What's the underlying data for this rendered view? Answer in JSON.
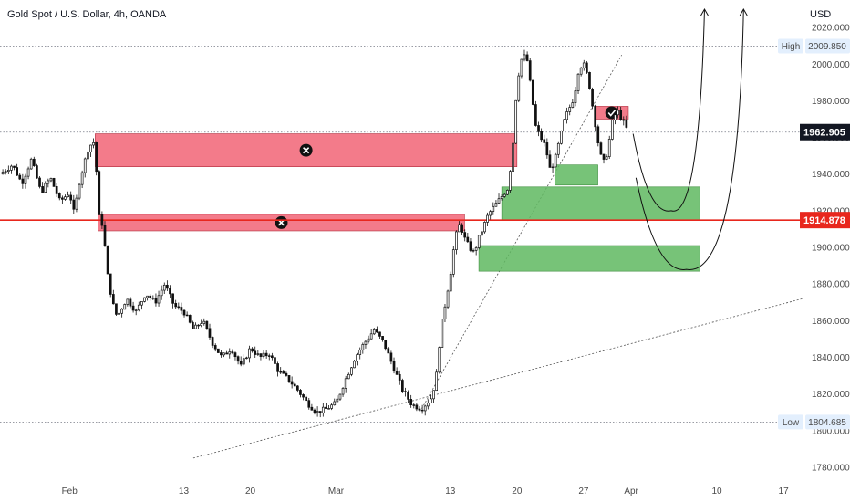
{
  "header": {
    "title": "Gold Spot / U.S. Dollar, 4h, OANDA",
    "currency": "USD"
  },
  "colors": {
    "supply_zone": "#f26d7d",
    "demand_zone": "#5fb860",
    "horizontal_level": "#e8271d",
    "candle": "#111111",
    "price_tag_dark": "#131722",
    "price_tag_red": "#e8271d"
  },
  "chart_data": {
    "type": "candlestick",
    "title": "Gold Spot / U.S. Dollar, 4h, OANDA",
    "y_unit": "USD",
    "ylim": [
      1775,
      2035
    ],
    "y_ticks": [
      {
        "value": 2020,
        "label": "2020.000"
      },
      {
        "value": 2000,
        "label": "2000.000"
      },
      {
        "value": 1980,
        "label": "1980.000"
      },
      {
        "value": 1960,
        "label": "1960.000"
      },
      {
        "value": 1940,
        "label": "1940.000"
      },
      {
        "value": 1920,
        "label": "1920.000"
      },
      {
        "value": 1900,
        "label": "1900.000"
      },
      {
        "value": 1880,
        "label": "1880.000"
      },
      {
        "value": 1860,
        "label": "1860.000"
      },
      {
        "value": 1840,
        "label": "1840.000"
      },
      {
        "value": 1820,
        "label": "1820.000"
      },
      {
        "value": 1800,
        "label": "1800.000"
      },
      {
        "value": 1780,
        "label": "1780.000"
      }
    ],
    "x_ticks": [
      {
        "day": 0,
        "label": "Feb"
      },
      {
        "day": 12,
        "label": "13"
      },
      {
        "day": 19,
        "label": "20"
      },
      {
        "day": 28,
        "label": "Mar"
      },
      {
        "day": 40,
        "label": "13"
      },
      {
        "day": 47,
        "label": "20"
      },
      {
        "day": 54,
        "label": "27"
      },
      {
        "day": 59,
        "label": "Apr"
      },
      {
        "day": 68,
        "label": "10"
      },
      {
        "day": 75,
        "label": "17"
      }
    ],
    "xlim": [
      -7.3,
      77
    ],
    "price_path": [
      [
        -7.3,
        1940
      ],
      [
        -6,
        1945
      ],
      [
        -5,
        1935
      ],
      [
        -4,
        1948
      ],
      [
        -3,
        1930
      ],
      [
        -2,
        1938
      ],
      [
        -1,
        1925
      ],
      [
        0,
        1930
      ],
      [
        0.5,
        1918
      ],
      [
        1,
        1935
      ],
      [
        2,
        1955
      ],
      [
        2.7,
        1958
      ],
      [
        3,
        1918
      ],
      [
        3.5,
        1912
      ],
      [
        4,
        1885
      ],
      [
        4.5,
        1870
      ],
      [
        5,
        1862
      ],
      [
        6,
        1872
      ],
      [
        7,
        1865
      ],
      [
        8,
        1875
      ],
      [
        9,
        1870
      ],
      [
        10,
        1880
      ],
      [
        11,
        1868
      ],
      [
        12,
        1865
      ],
      [
        13,
        1855
      ],
      [
        14,
        1860
      ],
      [
        15,
        1848
      ],
      [
        16,
        1840
      ],
      [
        17,
        1845
      ],
      [
        18,
        1835
      ],
      [
        19,
        1845
      ],
      [
        20,
        1840
      ],
      [
        21,
        1842
      ],
      [
        22,
        1832
      ],
      [
        23,
        1828
      ],
      [
        24,
        1822
      ],
      [
        25,
        1815
      ],
      [
        26,
        1810
      ],
      [
        27,
        1812
      ],
      [
        28,
        1815
      ],
      [
        29,
        1828
      ],
      [
        30,
        1840
      ],
      [
        31,
        1848
      ],
      [
        32,
        1855
      ],
      [
        33,
        1848
      ],
      [
        34,
        1835
      ],
      [
        35,
        1822
      ],
      [
        36,
        1814
      ],
      [
        37,
        1812
      ],
      [
        38,
        1818
      ],
      [
        38.5,
        1828
      ],
      [
        39,
        1855
      ],
      [
        39.5,
        1870
      ],
      [
        40,
        1885
      ],
      [
        40.5,
        1905
      ],
      [
        41,
        1913
      ],
      [
        41.5,
        1905
      ],
      [
        42,
        1900
      ],
      [
        42.5,
        1897
      ],
      [
        43,
        1905
      ],
      [
        44,
        1918
      ],
      [
        45,
        1925
      ],
      [
        46,
        1932
      ],
      [
        46.5,
        1950
      ],
      [
        47,
        1990
      ],
      [
        47.5,
        2003
      ],
      [
        48,
        2005
      ],
      [
        48.5,
        1985
      ],
      [
        49,
        1965
      ],
      [
        50,
        1955
      ],
      [
        50.5,
        1942
      ],
      [
        51,
        1948
      ],
      [
        52,
        1970
      ],
      [
        53,
        1982
      ],
      [
        53.5,
        1998
      ],
      [
        54,
        2000
      ],
      [
        54.5,
        1992
      ],
      [
        55,
        1975
      ],
      [
        55.5,
        1958
      ],
      [
        56,
        1945
      ],
      [
        56.5,
        1952
      ],
      [
        57,
        1968
      ],
      [
        57.5,
        1975
      ],
      [
        58,
        1970
      ],
      [
        58.5,
        1965
      ]
    ],
    "annotations": {
      "supply_zones": [
        {
          "x_start": 2.7,
          "x_end": 47,
          "y_low": 1944,
          "y_high": 1962,
          "marker": "cross"
        },
        {
          "x_start": 3,
          "x_end": 41.5,
          "y_low": 1909,
          "y_high": 1918,
          "marker": "cross"
        },
        {
          "x_start": 55.2,
          "x_end": 58.7,
          "y_low": 1970,
          "y_high": 1977,
          "marker": "check"
        }
      ],
      "demand_zones": [
        {
          "x_start": 51,
          "x_end": 55.5,
          "y_low": 1934,
          "y_high": 1945
        },
        {
          "x_start": 45.4,
          "x_end": 66.2,
          "y_low": 1915,
          "y_high": 1933
        },
        {
          "x_start": 43,
          "x_end": 66.2,
          "y_low": 1887,
          "y_high": 1901
        }
      ],
      "horizontal_level": 1914.878,
      "current_price": 1962.905,
      "high": 2009.85,
      "low": 1804.685,
      "trendlines": [
        {
          "from": [
            37,
            1812
          ],
          "to": [
            58,
            2005
          ]
        },
        {
          "from": [
            13,
            1785
          ],
          "to": [
            77,
            1872
          ]
        }
      ],
      "projections": [
        {
          "start": [
            59.2,
            1962
          ],
          "min": [
            63.2,
            1920
          ],
          "end": [
            66.7,
            2030
          ]
        },
        {
          "start": [
            59.5,
            1938
          ],
          "min": [
            64.8,
            1888
          ],
          "end": [
            70.8,
            2030
          ]
        }
      ]
    },
    "price_labels": {
      "high_tag": "High",
      "high_value": "2009.850",
      "low_tag": "Low",
      "low_value": "1804.685",
      "current_value": "1962.905",
      "level_value": "1914.878"
    }
  }
}
